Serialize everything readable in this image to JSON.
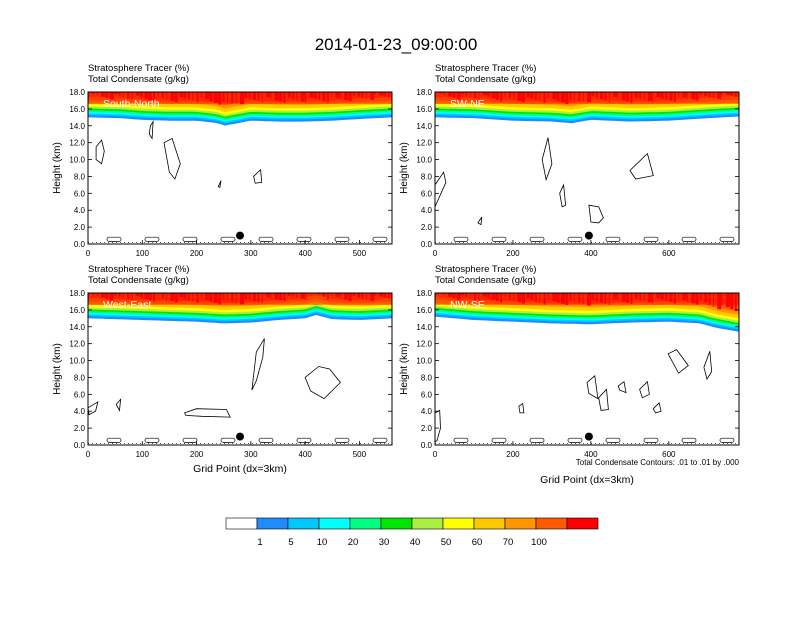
{
  "title": "2014-01-23_09:00:00",
  "chart_data": [
    {
      "type": "heatmap",
      "panel": "South-North",
      "subtitle_1": "Stratosphere Tracer   (%)",
      "subtitle_2": "Total Condensate   (g/kg)",
      "xlabel": "",
      "ylabel": "Height (km)",
      "xlim": [
        0,
        560
      ],
      "ylim": [
        0,
        18
      ],
      "xticks": [
        "0",
        "100",
        "200",
        "300",
        "400",
        "500"
      ],
      "xtick_values": [
        0,
        100,
        200,
        300,
        400,
        500
      ],
      "yticks": [
        "0.0",
        "2.0",
        "4.0",
        "6.0",
        "8.0",
        "10.0",
        "12.0",
        "14.0",
        "16.0",
        "18.0"
      ],
      "marker_x": 280,
      "marker_y": 1.0,
      "tropopause_x": [
        0,
        60,
        100,
        150,
        200,
        240,
        250,
        300,
        350,
        400,
        450,
        500,
        560
      ],
      "tropopause_km": [
        15.0,
        14.9,
        14.7,
        14.6,
        14.6,
        14.3,
        14.0,
        14.6,
        14.5,
        14.5,
        14.6,
        14.8,
        15.0
      ]
    },
    {
      "type": "heatmap",
      "panel": "SW-NE",
      "subtitle_1": "Stratosphere Tracer   (%)",
      "subtitle_2": "Total Condensate   (g/kg)",
      "xlabel": "",
      "ylabel": "Height (km)",
      "xlim": [
        0,
        780
      ],
      "ylim": [
        0,
        18
      ],
      "xticks": [
        "0",
        "200",
        "400",
        "600"
      ],
      "xtick_values": [
        0,
        200,
        400,
        600
      ],
      "yticks": [
        "0.0",
        "2.0",
        "4.0",
        "6.0",
        "8.0",
        "10.0",
        "12.0",
        "14.0",
        "16.0",
        "18.0"
      ],
      "marker_x": 395,
      "marker_y": 1.0,
      "tropopause_x": [
        0,
        100,
        200,
        300,
        350,
        400,
        500,
        600,
        700,
        780
      ],
      "tropopause_km": [
        15.0,
        14.9,
        14.6,
        14.5,
        14.3,
        14.7,
        14.5,
        14.6,
        14.9,
        15.1
      ]
    },
    {
      "type": "heatmap",
      "panel": "West-East",
      "subtitle_1": "Stratosphere Tracer   (%)",
      "subtitle_2": "Total Condensate   (g/kg)",
      "xlabel": "Grid Point (dx=3km)",
      "ylabel": "Height (km)",
      "xlim": [
        0,
        560
      ],
      "ylim": [
        0,
        18
      ],
      "xticks": [
        "0",
        "100",
        "200",
        "300",
        "400",
        "500"
      ],
      "xtick_values": [
        0,
        100,
        200,
        300,
        400,
        500
      ],
      "yticks": [
        "0.0",
        "2.0",
        "4.0",
        "6.0",
        "8.0",
        "10.0",
        "12.0",
        "14.0",
        "16.0",
        "18.0"
      ],
      "marker_x": 280,
      "marker_y": 1.0,
      "tropopause_x": [
        0,
        100,
        200,
        250,
        300,
        350,
        400,
        420,
        450,
        500,
        560
      ],
      "tropopause_km": [
        15.0,
        14.8,
        14.6,
        14.4,
        14.5,
        14.8,
        15.0,
        15.4,
        14.9,
        14.8,
        15.0
      ]
    },
    {
      "type": "heatmap",
      "panel": "NW-SE",
      "subtitle_1": "Stratosphere Tracer   (%)",
      "subtitle_2": "Total Condensate   (g/kg)",
      "xlabel": "Grid Point (dx=3km)",
      "ylabel": "Height (km)",
      "xlim": [
        0,
        780
      ],
      "ylim": [
        0,
        18
      ],
      "xticks": [
        "0",
        "200",
        "400",
        "600"
      ],
      "xtick_values": [
        0,
        200,
        400,
        600
      ],
      "yticks": [
        "0.0",
        "2.0",
        "4.0",
        "6.0",
        "8.0",
        "10.0",
        "12.0",
        "14.0",
        "16.0",
        "18.0"
      ],
      "marker_x": 395,
      "marker_y": 1.0,
      "contour_note": "Total Condensate Contours: .01 to .01 by .000",
      "tropopause_x": [
        0,
        100,
        200,
        300,
        400,
        500,
        600,
        680,
        720,
        780
      ],
      "tropopause_km": [
        15.2,
        14.8,
        14.6,
        14.4,
        14.3,
        14.5,
        14.6,
        14.4,
        13.9,
        13.4
      ]
    }
  ],
  "legend": {
    "labels": [
      "1",
      "5",
      "10",
      "20",
      "30",
      "40",
      "50",
      "60",
      "70",
      "100"
    ],
    "colors": [
      "#ffffff",
      "#1e8cff",
      "#00c8ff",
      "#00ffff",
      "#00ff80",
      "#00e600",
      "#aaf040",
      "#ffff00",
      "#ffc800",
      "#ff9600",
      "#ff5a00",
      "#ff0000"
    ]
  }
}
